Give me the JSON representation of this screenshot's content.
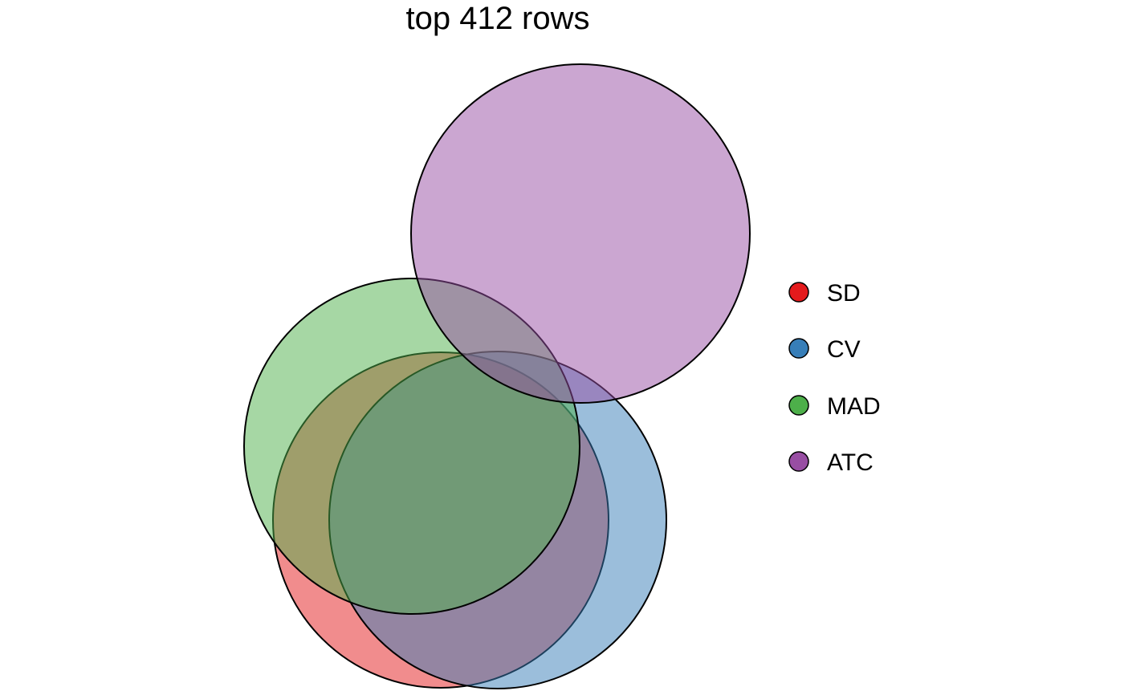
{
  "title": "top 412 rows",
  "sets": [
    {
      "key": "sd",
      "name": "SD",
      "color": "#E41A1C"
    },
    {
      "key": "cv",
      "name": "CV",
      "color": "#377EB8"
    },
    {
      "key": "mad",
      "name": "MAD",
      "color": "#4DAF4A"
    },
    {
      "key": "atc",
      "name": "ATC",
      "color": "#984EA3"
    }
  ],
  "fill_opacity": 0.5
}
